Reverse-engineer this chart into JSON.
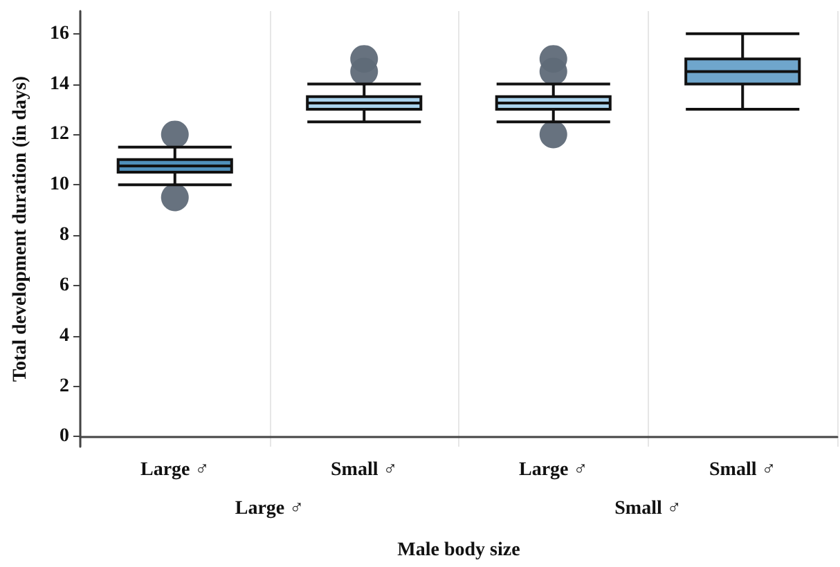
{
  "chart_data": {
    "type": "box",
    "xlabel": "Male body size",
    "ylabel": "Total development duration (in days)",
    "categories": [
      "Large ♂",
      "Small ♂",
      "Large ♂",
      "Small ♂"
    ],
    "boxes": [
      {
        "low": 10,
        "q1": 10.5,
        "median": 10.75,
        "q3": 11,
        "high": 11.5,
        "outliers": [
          12,
          9.5
        ]
      },
      {
        "low": 12.5,
        "q1": 13,
        "median": 13.25,
        "q3": 13.5,
        "high": 14,
        "outliers": [
          15,
          14.5
        ]
      },
      {
        "low": 12.5,
        "q1": 13,
        "median": 13.25,
        "q3": 13.5,
        "high": 14,
        "outliers": [
          15,
          14.5,
          12
        ]
      },
      {
        "low": 13,
        "q1": 14,
        "median": 14.5,
        "q3": 15,
        "high": 16
      }
    ],
    "colors": [
      "#4f8fba",
      "#a9d2ec",
      "#a9d2ec",
      "#6fa6cc"
    ],
    "annotations": [
      "Large ♂",
      "Small ♂"
    ],
    "ylim": [
      -0.4,
      16.9
    ],
    "yticks": [
      0,
      2,
      4,
      6,
      8,
      10,
      12,
      14,
      16
    ],
    "grid": "x"
  }
}
